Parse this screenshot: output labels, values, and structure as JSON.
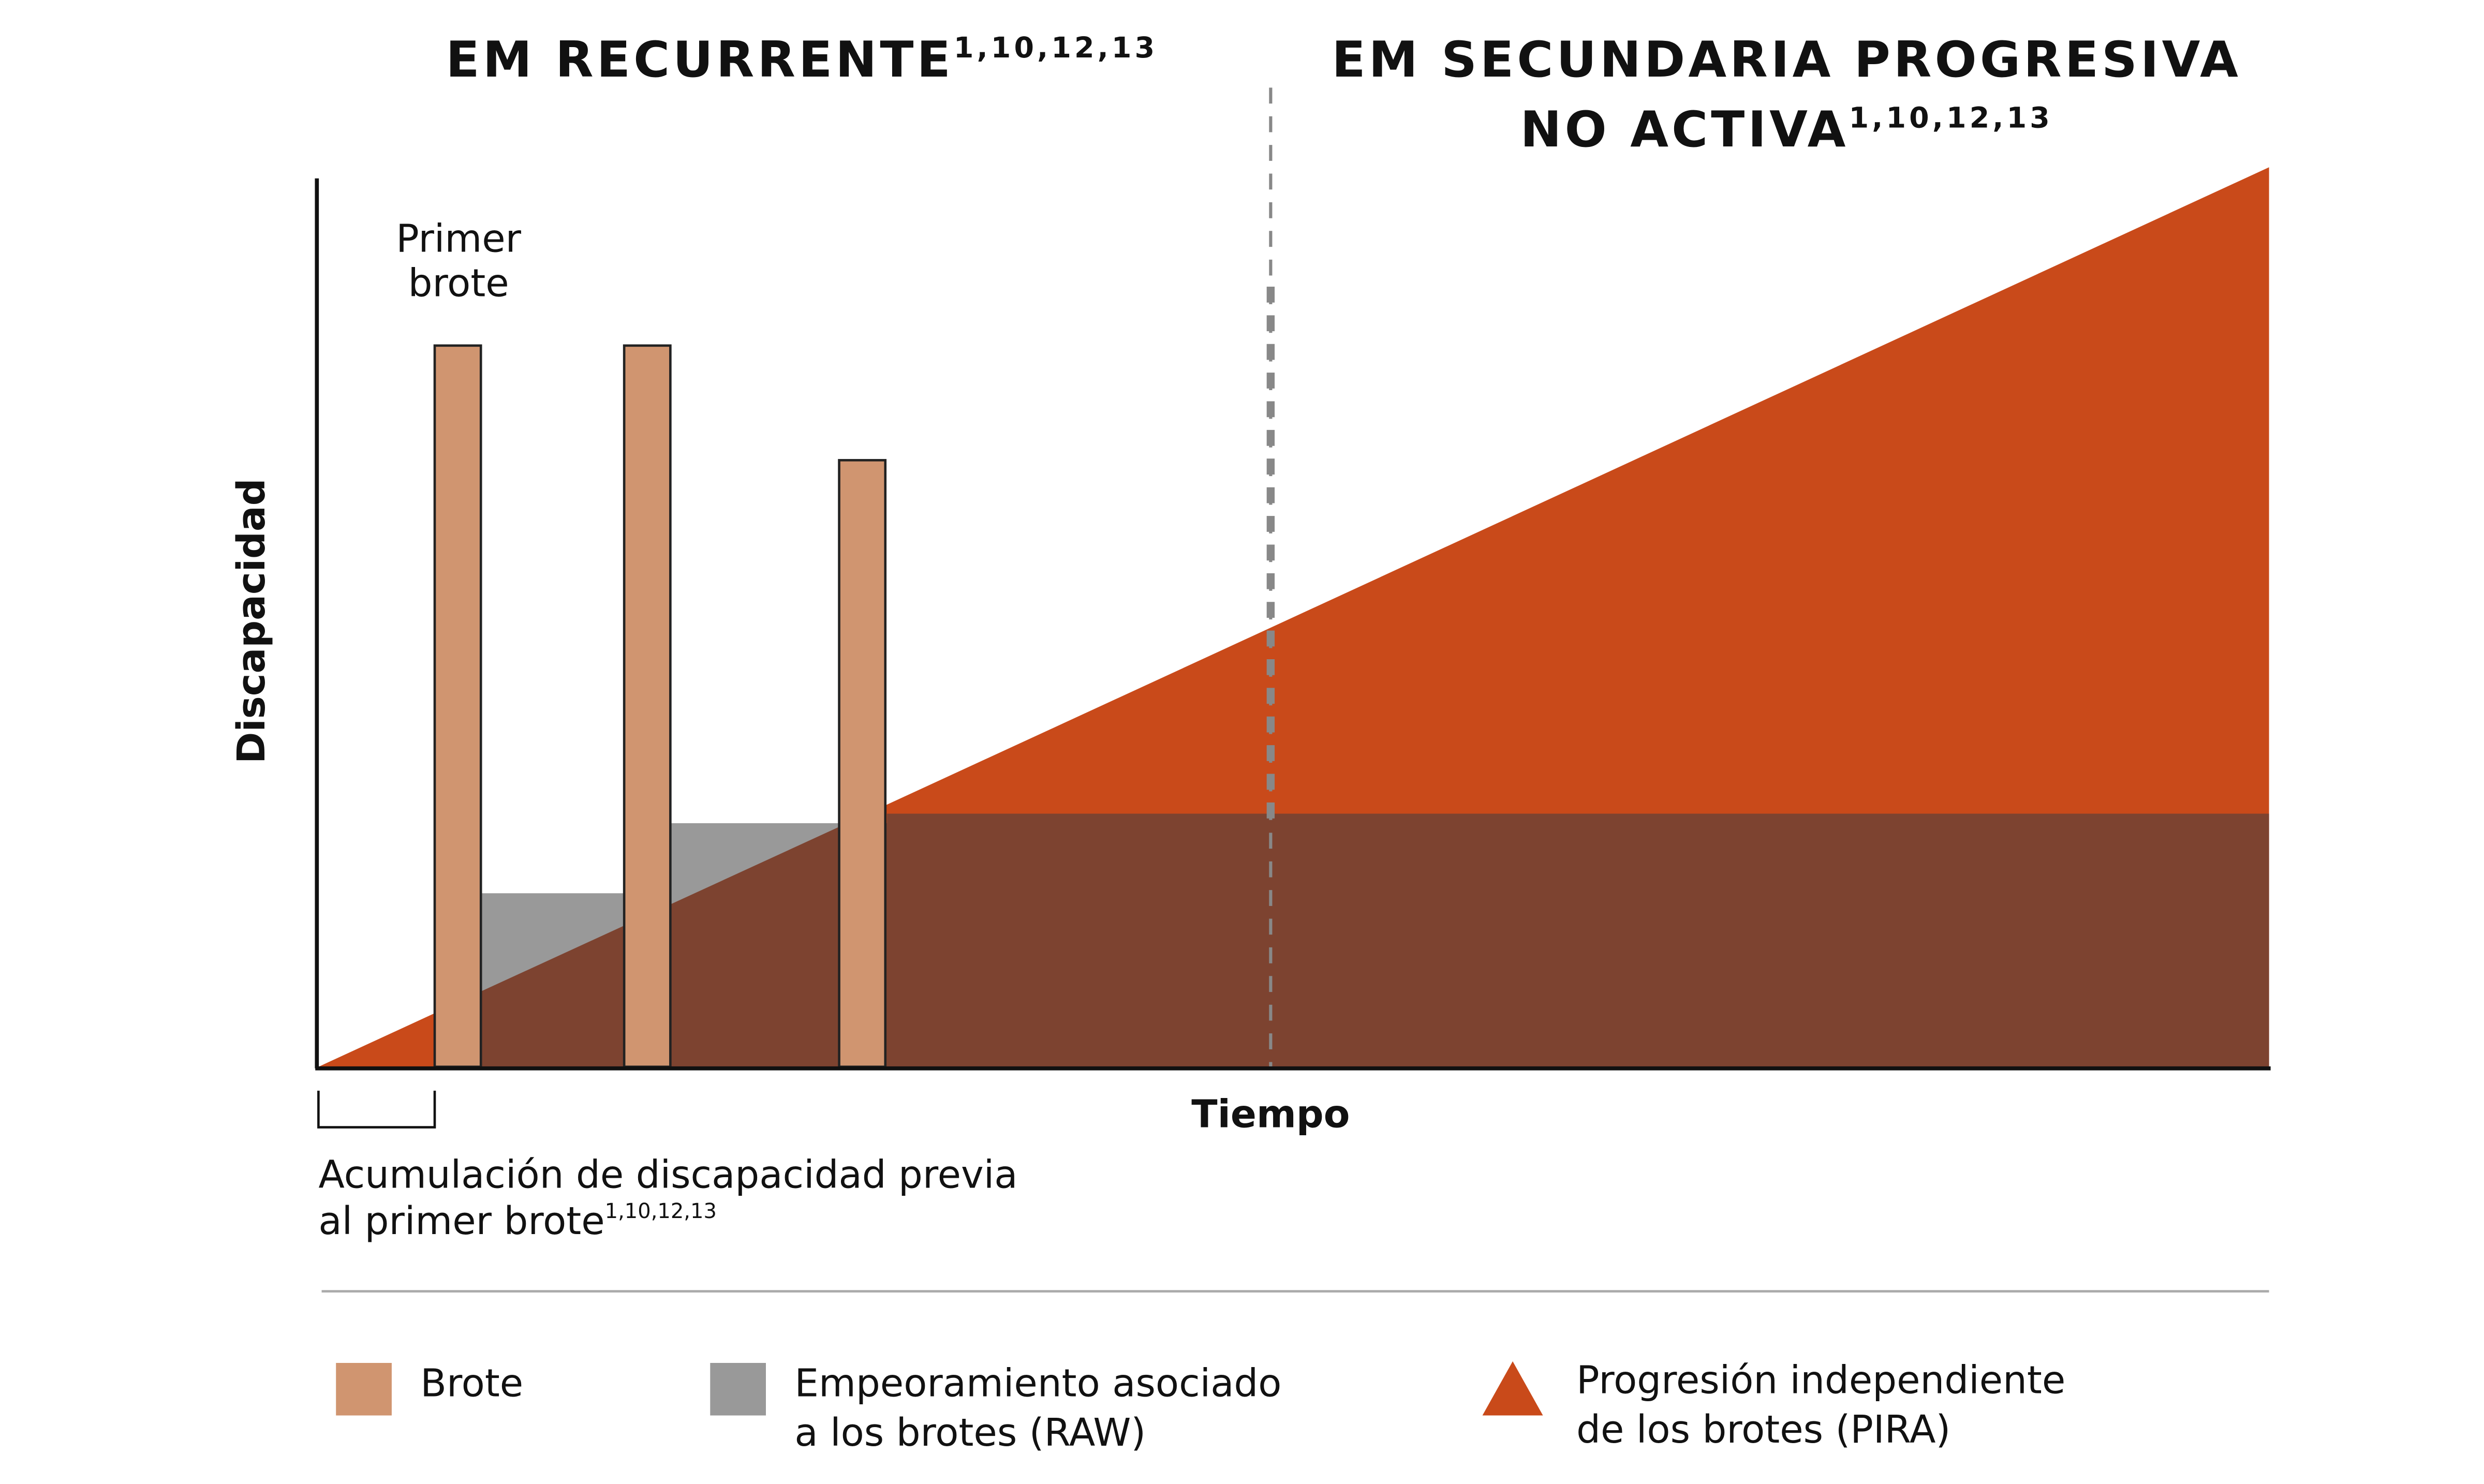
{
  "titles": {
    "left": {
      "text": "EM RECURRENTE",
      "sup": "1,10,12,13"
    },
    "right": {
      "line1": "EM SECUNDARIA PROGRESIVA",
      "line2": "NO ACTIVA",
      "sup": "1,10,12,13"
    }
  },
  "axes": {
    "y_label": "Discapacidad",
    "x_label": "Tiempo"
  },
  "annotations": {
    "first_relapse": [
      "Primer",
      "brote"
    ],
    "prior_accumulation": {
      "line1": "Acumulación de discapacidad previa",
      "line2": "al primer brote",
      "sup": "1,10,12,13"
    }
  },
  "legend": [
    {
      "lines": [
        "Brote"
      ]
    },
    {
      "lines": [
        "Empeoramiento asociado",
        "a los brotes (RAW)"
      ]
    },
    {
      "lines": [
        "Progresión independiente",
        "de los brotes (PIRA)"
      ]
    }
  ]
}
